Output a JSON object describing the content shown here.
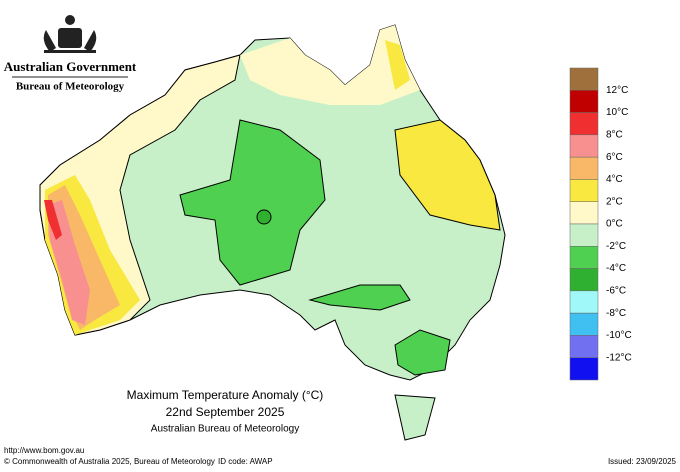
{
  "header": {
    "title": "Australian Government",
    "subtitle": "Bureau of Meteorology"
  },
  "map": {
    "title": "Maximum Temperature Anomaly (°C)",
    "date": "22nd September 2025",
    "source": "Australian Bureau of Meteorology"
  },
  "legend": {
    "colors": [
      "#a0703c",
      "#c00000",
      "#f03030",
      "#f89090",
      "#f8b868",
      "#f8e840",
      "#fff8c8",
      "#c8f0c8",
      "#50d050",
      "#30b030",
      "#a0f8f8",
      "#40c0f0",
      "#7070f0",
      "#1010f0"
    ],
    "labels": [
      "12°C",
      "10°C",
      "8°C",
      "6°C",
      "4°C",
      "2°C",
      "0°C",
      "-2°C",
      "-4°C",
      "-6°C",
      "-8°C",
      "-10°C",
      "-12°C"
    ]
  },
  "footer": {
    "url": "http://www.bom.gov.au",
    "copyright": "© Commonwealth of Australia 2025, Bureau of Meteorology",
    "id_code": "ID code: AWAP",
    "issued": "Issued: 23/09/2025"
  }
}
